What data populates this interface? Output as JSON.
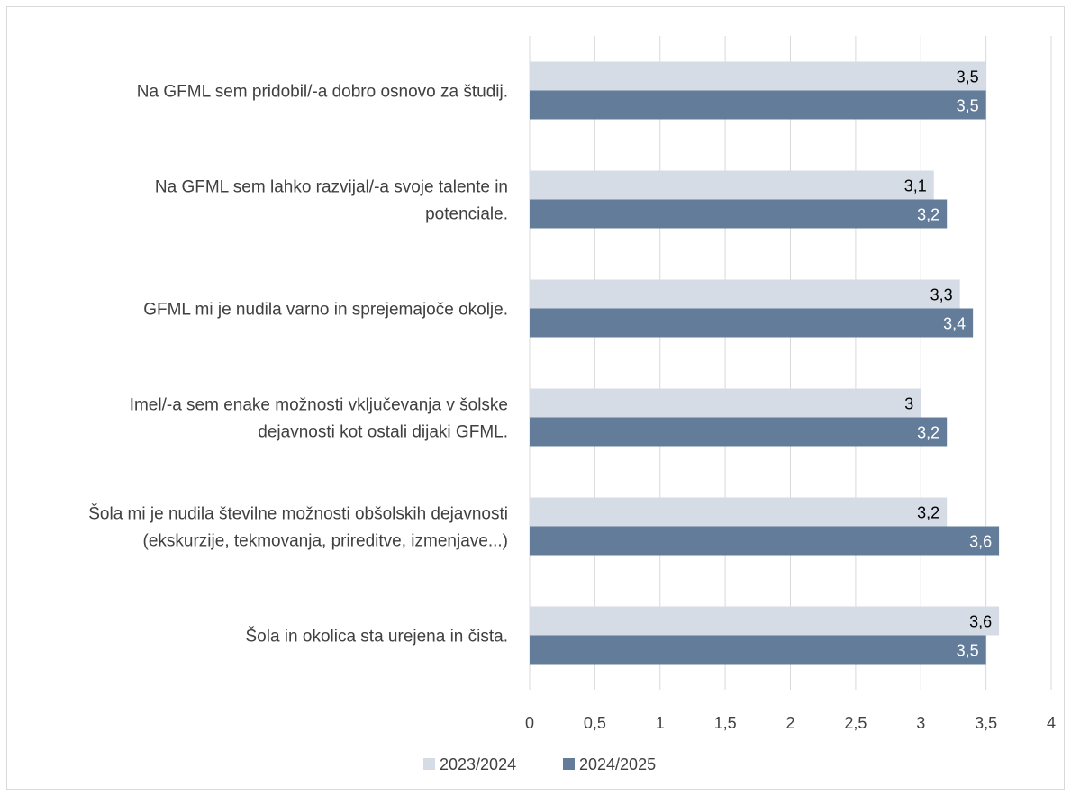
{
  "chart_data": {
    "type": "bar",
    "orientation": "horizontal",
    "categories": [
      "Na GFML sem pridobil/-a dobro osnovo za študij.",
      "Na GFML sem lahko razvijal/-a svoje talente in potenciale.",
      "GFML mi je nudila varno in sprejemajoče okolje.",
      "Imel/-a sem enake možnosti vključevanja v šolske dejavnosti kot ostali dijaki GFML.",
      "Šola mi je nudila številne možnosti obšolskih dejavnosti (ekskurzije, tekmovanja, prireditve, izmenjave...)",
      "Šola in okolica sta urejena in čista."
    ],
    "category_lines": [
      [
        "Na GFML sem pridobil/-a dobro osnovo za študij."
      ],
      [
        "Na GFML sem lahko razvijal/-a svoje talente in",
        "potenciale."
      ],
      [
        "GFML mi je nudila varno in sprejemajoče okolje."
      ],
      [
        "Imel/-a sem enake možnosti vključevanja v šolske",
        "dejavnosti kot ostali dijaki GFML."
      ],
      [
        "Šola mi je nudila številne možnosti obšolskih dejavnosti",
        "(ekskurzije, tekmovanja, prireditve, izmenjave...)"
      ],
      [
        "Šola in okolica sta urejena in čista."
      ]
    ],
    "series": [
      {
        "name": "2023/2024",
        "color": "#d6dce5",
        "label_color": "#000000",
        "values": [
          3.5,
          3.1,
          3.3,
          3.0,
          3.2,
          3.6
        ],
        "labels": [
          "3,5",
          "3,1",
          "3,3",
          "3",
          "3,2",
          "3,6"
        ]
      },
      {
        "name": "2024/2025",
        "color": "#637c9a",
        "label_color": "#ffffff",
        "values": [
          3.5,
          3.2,
          3.4,
          3.2,
          3.6,
          3.5
        ],
        "labels": [
          "3,5",
          "3,2",
          "3,4",
          "3,2",
          "3,6",
          "3,5"
        ]
      }
    ],
    "xlim": [
      0,
      4
    ],
    "xticks": [
      0,
      0.5,
      1,
      1.5,
      2,
      2.5,
      3,
      3.5,
      4
    ],
    "xtick_labels": [
      "0",
      "0,5",
      "1",
      "1,5",
      "2",
      "2,5",
      "3",
      "3,5",
      "4"
    ],
    "grid": "vertical",
    "grid_color": "#d9d9d9",
    "legend_position": "bottom",
    "title": "",
    "xlabel": "",
    "ylabel": ""
  }
}
